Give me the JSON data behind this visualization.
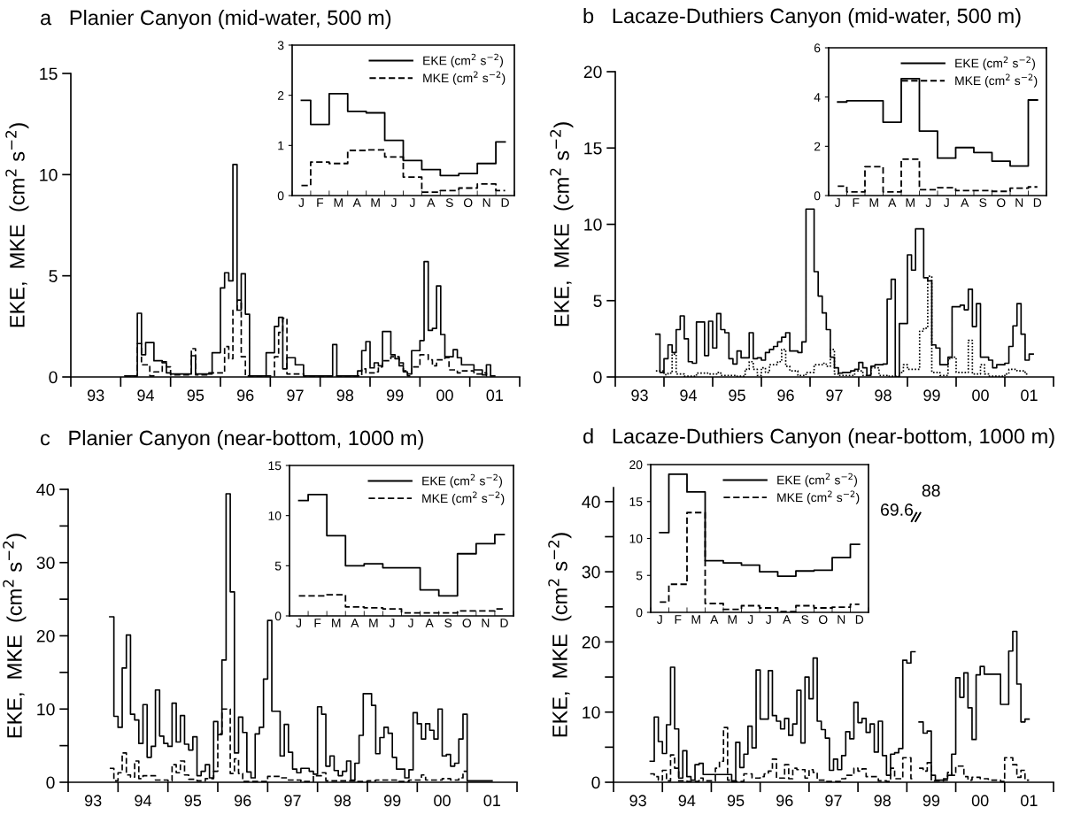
{
  "chart_data": [
    {
      "type": "step",
      "title": "a   Planier Canyon (mid-water, 500 m)",
      "ylabel": "EKE,  MKE  (cm$^{2}$ s$^{−2}$)",
      "xlim": [
        "1993",
        "2002"
      ],
      "xticks": [
        {
          "value": "1993",
          "label": null
        },
        {
          "value": "1993-07",
          "label": "93"
        },
        {
          "value": "1994",
          "label": null
        },
        {
          "value": "1994-07",
          "label": "94"
        },
        {
          "value": "1995",
          "label": null
        },
        {
          "value": "1995-07",
          "label": "95"
        },
        {
          "value": "1996",
          "label": null
        },
        {
          "value": "1996-07",
          "label": "96"
        },
        {
          "value": "1997",
          "label": null
        },
        {
          "value": "1997-07",
          "label": "97"
        },
        {
          "value": "1998",
          "label": null
        },
        {
          "value": "1998-07",
          "label": "98"
        },
        {
          "value": "1999",
          "label": null
        },
        {
          "value": "1999-07",
          "label": "99"
        },
        {
          "value": "2000",
          "label": null
        },
        {
          "value": "2000-07",
          "label": "00"
        },
        {
          "value": "2001",
          "label": null
        },
        {
          "value": "2001-07",
          "label": "01"
        },
        {
          "value": "2002",
          "label": null
        }
      ],
      "ylim": [
        0,
        15
      ],
      "yticks": [
        0,
        5,
        10,
        15
      ],
      "series": [
        {
          "color": "#000000",
          "line_style": "solid",
          "x": [
            "1994-02",
            "1994-05",
            "1994-06",
            "1994-07",
            "1994-09",
            "1994-11",
            "1994-12",
            "1995-01",
            "1995-06",
            "1995-07",
            "1995-11",
            "1996-01",
            "1996-02",
            "1996-03",
            "1996-04",
            "1996-05",
            "1996-06",
            "1996-07",
            "1996-08",
            "1996-12",
            "1997-02",
            "1997-03",
            "1997-04",
            "1997-05",
            "1997-07",
            "1997-09",
            "1998-04",
            "1998-05",
            "1998-10",
            "1998-11",
            "1998-12",
            "1999-01",
            "1999-02",
            "1999-03",
            "1999-04",
            "1999-06",
            "1999-07",
            "1999-08",
            "1999-09",
            "1999-10",
            "1999-11",
            "2000-01",
            "2000-02",
            "2000-03",
            "2000-04",
            "2000-05",
            "2000-06",
            "2000-07",
            "2000-09",
            "2000-10",
            "2000-11",
            "2001-02",
            "2001-04",
            "2001-05",
            "2001-06"
          ],
          "values": [
            0.05,
            3.15,
            1.1,
            1.7,
            0.8,
            0.7,
            0.2,
            0.15,
            1.05,
            0.15,
            1.2,
            4.4,
            5.15,
            4.75,
            10.5,
            3.3,
            5.1,
            3.1,
            0.05,
            1.2,
            2.5,
            2.95,
            0.4,
            0.95,
            0.6,
            0.05,
            1.6,
            0.05,
            0.3,
            1.3,
            1.75,
            0.45,
            0.7,
            0.55,
            2.25,
            1.1,
            0.9,
            0.55,
            0.25,
            0.15,
            1.3,
            1.8,
            5.7,
            2.3,
            2.4,
            4.5,
            2.1,
            1.0,
            1.35,
            0.95,
            0.6,
            0.35,
            0.1,
            0.6,
            0.05
          ]
        },
        {
          "color": "#000000",
          "line_style": "dashed",
          "x": [
            "1994-02",
            "1994-05",
            "1994-06",
            "1994-08",
            "1994-09",
            "1994-11",
            "1994-12",
            "1995-01",
            "1995-06",
            "1995-07",
            "1995-10",
            "1996-02",
            "1996-03",
            "1996-04",
            "1996-05",
            "1996-06",
            "1996-07",
            "1997-02",
            "1997-03",
            "1997-04",
            "1997-05",
            "1997-09",
            "1998-11",
            "1998-12",
            "1999-02",
            "1999-03",
            "1999-04",
            "1999-06",
            "1999-08",
            "1999-09",
            "1999-10",
            "1999-11",
            "2000-01",
            "2000-03",
            "2000-04",
            "2000-05",
            "2000-07",
            "2000-08",
            "2000-10",
            "2000-11",
            "2001-02",
            "2001-04",
            "2001-05"
          ],
          "values": [
            0.05,
            1.65,
            0.6,
            0.05,
            0.25,
            0.75,
            0.5,
            0.1,
            1.4,
            0.1,
            0.2,
            1.5,
            0.9,
            3.3,
            3.8,
            1.0,
            0.05,
            1.0,
            2.2,
            2.9,
            0.15,
            0.05,
            0.4,
            0.2,
            0.25,
            0.5,
            0.8,
            1.0,
            0.7,
            0.3,
            0.05,
            0.5,
            1.1,
            0.85,
            0.55,
            0.85,
            0.95,
            0.35,
            0.2,
            0.3,
            0.15,
            0.2,
            0.05
          ]
        }
      ]
    },
    {
      "type": "step",
      "categories": [
        "J",
        "F",
        "M",
        "A",
        "M",
        "J",
        "J",
        "A",
        "S",
        "O",
        "N",
        "D"
      ],
      "ylim": [
        0,
        3
      ],
      "yticks": [
        0,
        1,
        2,
        3
      ],
      "legend": "top right",
      "series": [
        {
          "name": "EKE (cm$^{2}$ s$^{−2}$)",
          "color": "#000000",
          "line_style": "solid",
          "values": [
            1.9,
            1.42,
            2.03,
            1.68,
            1.65,
            1.1,
            0.7,
            0.52,
            0.4,
            0.44,
            0.64,
            1.07
          ]
        },
        {
          "name": "MKE (cm$^{2}$ s$^{−2}$)",
          "color": "#000000",
          "line_style": "dashed",
          "values": [
            0.2,
            0.67,
            0.64,
            0.9,
            0.91,
            0.77,
            0.37,
            0.07,
            0.1,
            0.15,
            0.23,
            0.1
          ]
        }
      ]
    },
    {
      "type": "step",
      "title": "b   Lacaze-Duthiers Canyon (mid-water, 500 m)",
      "ylabel": "EKE,  MKE  (cm$^{2}$ s$^{−2}$)",
      "xlim": [
        "1993",
        "2002"
      ],
      "xticks": [
        {
          "value": "1993",
          "label": null
        },
        {
          "value": "1993-07",
          "label": "93"
        },
        {
          "value": "1994",
          "label": null
        },
        {
          "value": "1994-07",
          "label": "94"
        },
        {
          "value": "1995",
          "label": null
        },
        {
          "value": "1995-07",
          "label": "95"
        },
        {
          "value": "1996",
          "label": null
        },
        {
          "value": "1996-07",
          "label": "96"
        },
        {
          "value": "1997",
          "label": null
        },
        {
          "value": "1997-07",
          "label": "97"
        },
        {
          "value": "1998",
          "label": null
        },
        {
          "value": "1998-07",
          "label": "98"
        },
        {
          "value": "1999",
          "label": null
        },
        {
          "value": "1999-07",
          "label": "99"
        },
        {
          "value": "2000",
          "label": null
        },
        {
          "value": "2000-07",
          "label": "00"
        },
        {
          "value": "2001",
          "label": null
        },
        {
          "value": "2001-07",
          "label": "01"
        },
        {
          "value": "2002",
          "label": null
        }
      ],
      "ylim": [
        0,
        20
      ],
      "yticks": [
        0,
        5,
        10,
        15,
        20
      ],
      "series": [
        {
          "color": "#000000",
          "line_style": "solid",
          "x": [
            "1993-11",
            "1993-12",
            "1994-01",
            "1994-02",
            "1994-03",
            "1994-04",
            "1994-05",
            "1994-06",
            "1994-07",
            "1994-08",
            "1994-09",
            "1994-11",
            "1994-12",
            "1995-01",
            "1995-02",
            "1995-03",
            "1995-04",
            "1995-05",
            "1995-06",
            "1995-07",
            "1995-08",
            "1995-10",
            "1995-11",
            "1995-12",
            "1996-01",
            "1996-02",
            "1996-03",
            "1996-04",
            "1996-05",
            "1996-06",
            "1996-07",
            "1996-08",
            "1996-10",
            "1996-11",
            "1996-12",
            "1997-02",
            "1997-03",
            "1997-04",
            "1997-05",
            "1997-06",
            "1997-07",
            "1997-08",
            "1997-09",
            "1997-11",
            "1997-12",
            "1998-01",
            "1998-02",
            "1998-03",
            "1998-04",
            "1998-05",
            "1998-07",
            "1998-08",
            "1998-09",
            "1998-10",
            "1998-11",
            "1999-01",
            "1999-02",
            "1999-03",
            "1999-05",
            "1999-06",
            "1999-07",
            "1999-08",
            "1999-09",
            "1999-11",
            "1999-12",
            "2000-02",
            "2000-03",
            "2000-04",
            "2000-05",
            "2000-06",
            "2000-07",
            "2000-09",
            "2000-10",
            "2000-11",
            "2001-01",
            "2001-02",
            "2001-03",
            "2001-04",
            "2001-05",
            "2001-06",
            "2001-07"
          ],
          "values": [
            2.8,
            0.3,
            1.2,
            2.1,
            1.6,
            3.1,
            4.0,
            2.5,
            1.0,
            0.9,
            3.6,
            1.4,
            3.65,
            1.9,
            4.15,
            3.1,
            2.9,
            1.2,
            0.85,
            1.7,
            1.25,
            2.9,
            1.2,
            1.25,
            1.1,
            1.6,
            1.8,
            2.0,
            2.3,
            2.6,
            2.9,
            1.7,
            1.6,
            2.3,
            11.0,
            6.9,
            5.3,
            4.2,
            3.1,
            1.3,
            0.6,
            0.25,
            0.3,
            0.4,
            0.5,
            0.95,
            0.6,
            0.1,
            0.7,
            0.8,
            0.85,
            5.1,
            6.4,
            0.0,
            3.5,
            8.0,
            7.0,
            9.7,
            6.5,
            6.3,
            2.1,
            1.9,
            0.8,
            1.3,
            4.6,
            4.7,
            4.4,
            5.75,
            3.3,
            4.8,
            1.3,
            1.1,
            0.6,
            0.8,
            0.9,
            2.0,
            3.35,
            4.8,
            2.8,
            1.1,
            1.5
          ]
        },
        {
          "color": "#000000",
          "line_style": "dotted",
          "x": [
            "1993-11",
            "1994-01",
            "1994-02",
            "1994-03",
            "1994-04",
            "1994-06",
            "1994-09",
            "1994-12",
            "1995-02",
            "1995-03",
            "1995-07",
            "1995-09",
            "1995-10",
            "1995-11",
            "1995-12",
            "1996-01",
            "1996-02",
            "1996-03",
            "1996-05",
            "1996-06",
            "1996-07",
            "1996-08",
            "1996-10",
            "1996-12",
            "1997-02",
            "1997-04",
            "1997-05",
            "1997-06",
            "1997-07",
            "1997-08",
            "1997-12",
            "1998-02",
            "1998-04",
            "1998-06",
            "1998-08",
            "1998-11",
            "1998-12",
            "1999-01",
            "1999-04",
            "1999-05",
            "1999-06",
            "1999-07",
            "1999-09",
            "1999-11",
            "1999-12",
            "2000-01",
            "2000-04",
            "2000-05",
            "2000-07",
            "2000-08",
            "2000-09",
            "2001-01",
            "2001-02",
            "2001-04",
            "2001-06"
          ],
          "values": [
            0.4,
            0.15,
            0.25,
            1.5,
            0.2,
            0.05,
            0.25,
            0.2,
            0.3,
            0.1,
            0.05,
            0.5,
            1.0,
            0.5,
            0.1,
            0.6,
            0.3,
            0.8,
            1.0,
            1.8,
            0.7,
            0.4,
            0.1,
            0.3,
            0.8,
            0.9,
            0.7,
            1.8,
            0.2,
            0.1,
            0.4,
            0.1,
            0.6,
            0.1,
            0.05,
            0.3,
            0.8,
            0.5,
            3.0,
            3.2,
            6.6,
            0.3,
            0.1,
            1.2,
            1.3,
            0.3,
            2.4,
            0.2,
            0.8,
            0.2,
            0.05,
            0.2,
            0.5,
            0.4,
            0.2
          ]
        }
      ]
    },
    {
      "type": "step",
      "categories": [
        "J",
        "F",
        "M",
        "A",
        "M",
        "J",
        "J",
        "A",
        "S",
        "O",
        "N",
        "D"
      ],
      "ylim": [
        0,
        6
      ],
      "yticks": [
        0,
        2,
        4,
        6
      ],
      "legend": "top right",
      "series": [
        {
          "name": "EKE (cm$^{2}$ s$^{−2}$)",
          "color": "#000000",
          "line_style": "solid",
          "values": [
            3.8,
            3.85,
            3.85,
            2.98,
            4.75,
            2.62,
            1.52,
            1.95,
            1.75,
            1.4,
            1.2,
            3.88
          ]
        },
        {
          "name": "MKE (cm$^{2}$ s$^{−2}$)",
          "color": "#000000",
          "line_style": "dashed",
          "values": [
            0.38,
            0.15,
            1.17,
            0.15,
            1.48,
            0.24,
            0.32,
            0.2,
            0.2,
            0.17,
            0.3,
            0.35
          ]
        }
      ]
    },
    {
      "type": "step",
      "title": "c   Planier Canyon (near-bottom, 1000 m)",
      "ylabel": "EKE,  MKE  (cm$^{2}$ s$^{−2}$)",
      "xlim": [
        "1993",
        "2002"
      ],
      "xticks": [
        {
          "value": "1993",
          "label": null
        },
        {
          "value": "1993-07",
          "label": "93"
        },
        {
          "value": "1994",
          "label": null
        },
        {
          "value": "1994-07",
          "label": "94"
        },
        {
          "value": "1995",
          "label": null
        },
        {
          "value": "1995-07",
          "label": "95"
        },
        {
          "value": "1996",
          "label": null
        },
        {
          "value": "1996-07",
          "label": "96"
        },
        {
          "value": "1997",
          "label": null
        },
        {
          "value": "1997-07",
          "label": "97"
        },
        {
          "value": "1998",
          "label": null
        },
        {
          "value": "1998-07",
          "label": "98"
        },
        {
          "value": "1999",
          "label": null
        },
        {
          "value": "1999-07",
          "label": "99"
        },
        {
          "value": "2000",
          "label": null
        },
        {
          "value": "2000-07",
          "label": "00"
        },
        {
          "value": "2001",
          "label": null
        },
        {
          "value": "2001-07",
          "label": "01"
        },
        {
          "value": "2002",
          "label": null
        }
      ],
      "ylim": [
        0,
        40
      ],
      "yticks": [
        0,
        {
          "value": 5,
          "label": null
        },
        10,
        {
          "value": 15,
          "label": null
        },
        20,
        {
          "value": 25,
          "label": null
        },
        30,
        {
          "value": 35,
          "label": null
        },
        40
      ],
      "series": [
        {
          "color": "#000000",
          "line_style": "solid",
          "x": [
            "1993-11",
            "1993-12",
            "1994-01",
            "1994-02",
            "1994-03",
            "1994-04",
            "1994-05",
            "1994-06",
            "1994-07",
            "1994-08",
            "1994-09",
            "1994-10",
            "1994-11",
            "1994-12",
            "1995-01",
            "1995-02",
            "1995-03",
            "1995-04",
            "1995-05",
            "1995-06",
            "1995-07",
            "1995-08",
            "1995-09",
            "1995-10",
            "1995-11",
            "1995-12",
            "1996-01",
            "1996-02",
            "1996-03",
            "1996-04",
            "1996-05",
            "1996-06",
            "1996-07",
            "1996-08",
            "1996-09",
            "1996-10",
            "1996-11",
            "1996-12",
            "1997-01",
            "1997-02",
            "1997-04",
            "1997-05",
            "1997-06",
            "1997-07",
            "1997-08",
            "1997-09",
            "1997-11",
            "1997-12",
            "1998-01",
            "1998-02",
            "1998-03",
            "1998-04",
            "1998-05",
            "1998-06",
            "1998-07",
            "1998-08",
            "1998-09",
            "1998-10",
            "1998-11",
            "1998-12",
            "1999-02",
            "1999-03",
            "1999-04",
            "1999-05",
            "1999-06",
            "1999-07",
            "1999-08",
            "1999-10",
            "1999-11",
            "1999-12",
            "2000-01",
            "2000-02",
            "2000-03",
            "2000-04",
            "2000-05",
            "2000-06",
            "2000-07",
            "2000-08",
            "2000-09",
            "2000-10",
            "2000-11",
            "2000-12",
            "2001-01",
            "2001-06"
          ],
          "values": [
            22.6,
            9.0,
            7.5,
            15.6,
            20.1,
            9.3,
            8.5,
            5.3,
            10.6,
            3.4,
            4.9,
            12.6,
            6.3,
            5.3,
            4.9,
            10.8,
            5.5,
            9.1,
            5.2,
            4.4,
            6.2,
            0.9,
            1.5,
            2.4,
            0.6,
            8.3,
            6.5,
            16.7,
            39.4,
            26.0,
            4.0,
            8.9,
            6.8,
            1.4,
            0.6,
            6.6,
            7.5,
            14.1,
            22.1,
            9.7,
            3.6,
            7.9,
            4.1,
            1.8,
            1.3,
            1.9,
            1.5,
            1.1,
            10.3,
            9.3,
            2.2,
            3.6,
            1.6,
            0.9,
            1.5,
            2.9,
            0.3,
            2.6,
            6.4,
            12.1,
            10.5,
            3.9,
            6.1,
            7.5,
            6.7,
            3.4,
            1.8,
            0.6,
            1.7,
            9.5,
            8.0,
            5.9,
            8.0,
            7.1,
            5.9,
            10.0,
            3.6,
            3.8,
            2.2,
            2.6,
            5.9,
            9.3,
            0.2,
            0.2
          ]
        },
        {
          "color": "#000000",
          "line_style": "dashed",
          "x": [
            "1993-11",
            "1993-12",
            "1994-01",
            "1994-02",
            "1994-03",
            "1994-04",
            "1994-05",
            "1994-06",
            "1994-07",
            "1994-10",
            "1995-01",
            "1995-02",
            "1995-03",
            "1995-04",
            "1995-05",
            "1995-06",
            "1995-08",
            "1995-10",
            "1995-12",
            "1996-01",
            "1996-02",
            "1996-04",
            "1996-05",
            "1996-06",
            "1996-07",
            "1997-01",
            "1997-04",
            "1997-06",
            "1997-09",
            "1997-12",
            "1998-02",
            "1998-03",
            "1998-10",
            "1999-01",
            "1999-03",
            "1999-08",
            "1999-11",
            "2000-02",
            "2000-03",
            "2000-07",
            "2000-09",
            "2000-11",
            "2000-12"
          ],
          "values": [
            1.9,
            0.2,
            1.3,
            4.0,
            1.0,
            0.7,
            2.9,
            0.5,
            0.9,
            0.3,
            0.2,
            2.4,
            1.3,
            2.9,
            1.0,
            0.4,
            0.2,
            0.5,
            1.5,
            6.6,
            10.0,
            1.2,
            3.2,
            1.2,
            0.1,
            0.8,
            0.6,
            0.3,
            0.1,
            0.9,
            1.3,
            0.2,
            0.1,
            0.2,
            0.3,
            0.1,
            0.3,
            1.0,
            0.3,
            0.5,
            0.3,
            0.6,
            1.5
          ]
        }
      ]
    },
    {
      "type": "step",
      "categories": [
        "J",
        "F",
        "M",
        "A",
        "M",
        "J",
        "J",
        "A",
        "S",
        "O",
        "N",
        "D"
      ],
      "ylim": [
        0,
        15
      ],
      "yticks": [
        0,
        5,
        10,
        15
      ],
      "legend": "top right",
      "series": [
        {
          "name": "EKE (cm$^{2}$ s$^{−2}$)",
          "color": "#000000",
          "line_style": "solid",
          "values": [
            11.5,
            12.1,
            8.0,
            5.0,
            5.2,
            4.8,
            4.8,
            2.6,
            2.0,
            6.2,
            7.2,
            8.1
          ]
        },
        {
          "name": "MKE (cm$^{2}$ s$^{−2}$)",
          "color": "#000000",
          "line_style": "dashed",
          "values": [
            2.0,
            2.0,
            2.1,
            0.9,
            0.8,
            0.7,
            0.3,
            0.3,
            0.3,
            0.5,
            0.5,
            0.7
          ]
        }
      ]
    },
    {
      "type": "step",
      "title": "d   Lacaze-Duthiers Canyon (near-bottom, 1000 m)",
      "ylabel": "EKE,  MKE  (cm$^{2}$ s$^{−2}$)",
      "xlim": [
        "1993",
        "2002"
      ],
      "xticks": [
        {
          "value": "1993",
          "label": null
        },
        {
          "value": "1993-07",
          "label": "93"
        },
        {
          "value": "1994",
          "label": null
        },
        {
          "value": "1994-07",
          "label": "94"
        },
        {
          "value": "1995",
          "label": null
        },
        {
          "value": "1995-07",
          "label": "95"
        },
        {
          "value": "1996",
          "label": null
        },
        {
          "value": "1996-07",
          "label": "96"
        },
        {
          "value": "1997",
          "label": null
        },
        {
          "value": "1997-07",
          "label": "97"
        },
        {
          "value": "1998",
          "label": null
        },
        {
          "value": "1998-07",
          "label": "98"
        },
        {
          "value": "1999",
          "label": null
        },
        {
          "value": "1999-07",
          "label": "99"
        },
        {
          "value": "2000",
          "label": null
        },
        {
          "value": "2000-07",
          "label": "00"
        },
        {
          "value": "2001",
          "label": null
        },
        {
          "value": "2001-07",
          "label": "01"
        },
        {
          "value": "2002",
          "label": null
        }
      ],
      "ylim": [
        0,
        42
      ],
      "yticks": [
        0,
        {
          "value": 5,
          "label": null
        },
        10,
        {
          "value": 15,
          "label": null
        },
        20,
        {
          "value": 25,
          "label": null
        },
        30,
        {
          "value": 35,
          "label": null
        },
        40
      ],
      "annotations": [
        "69.6",
        "88"
      ],
      "series": [
        {
          "color": "#000000",
          "line_style": "solid",
          "x": [
            "1993-10",
            "1993-11",
            "1993-12",
            "1994-01",
            "1994-02",
            "1994-03",
            "1994-04",
            "1994-05",
            "1994-06",
            "1994-07",
            "1994-08",
            "1994-09",
            "1994-10",
            "1994-11",
            "1995-06",
            "1995-07",
            "1995-08",
            "1995-09",
            "1995-10",
            "1995-11",
            "1995-12",
            "1996-01",
            "1996-03",
            "1996-04",
            "1996-05",
            "1996-06",
            "1996-07",
            "1996-08",
            "1996-09",
            "1996-10",
            "1996-11",
            "1996-12",
            "1997-01",
            "1997-02",
            "1997-03",
            "1997-04",
            "1997-05",
            "1997-06",
            "1997-07",
            "1997-08",
            "1997-09",
            "1997-10",
            "1997-11",
            "1997-12",
            "1998-01",
            "1998-02",
            "1998-03",
            "1998-04",
            "1998-05",
            "1998-06",
            "1998-07",
            "1998-08",
            "1998-09",
            "1998-10",
            "1998-11",
            "1998-12",
            "1999-01",
            "1999-02",
            "1999-03",
            "1999-04",
            "1999-05",
            "1999-06",
            "1999-07",
            "1999-08",
            "1999-10",
            "1999-11",
            "1999-12",
            "2000-01",
            "2000-02",
            "2000-03",
            "2000-04",
            "2000-05",
            "2000-06",
            "2000-07",
            "2000-08",
            "2000-12",
            "2001-02",
            "2001-03",
            "2001-04",
            "2001-05",
            "2001-06"
          ],
          "values": [
            3.0,
            9.3,
            5.8,
            4.1,
            8.2,
            16.4,
            7.6,
            0.6,
            4.5,
            0.8,
            0.3,
            2.5,
            2.7,
            1.1,
            0.2,
            5.7,
            2.1,
            4.0,
            8.0,
            4.9,
            16.0,
            9.0,
            15.9,
            9.5,
            8.7,
            7.6,
            9.1,
            6.7,
            8.3,
            13.1,
            5.6,
            15.0,
            11.9,
            17.7,
            8.7,
            7.5,
            6.3,
            1.7,
            3.3,
            1.8,
            3.8,
            7.2,
            6.2,
            11.4,
            8.5,
            9.1,
            7.1,
            8.3,
            4.3,
            8.7,
            3.8,
            1.0,
            4.0,
            4.2,
            4.8,
            17.4,
            17.0,
            18.6,
            null,
            8.6,
            7.0,
            7.3,
            1.0,
            0.3,
            0.5,
            1.0,
            4.0,
            14.9,
            12.1,
            15.6,
            10.6,
            6.1,
            15.3,
            16.5,
            15.4,
            11.1,
            18.7,
            21.5,
            14.0,
            8.6,
            9.0
          ]
        },
        {
          "color": "#000000",
          "line_style": "dashed",
          "x": [
            "1993-10",
            "1993-11",
            "1993-12",
            "1994-01",
            "1994-02",
            "1994-03",
            "1994-04",
            "1994-05",
            "1994-07",
            "1994-10",
            "1994-11",
            "1995-02",
            "1995-03",
            "1995-04",
            "1995-05",
            "1995-06",
            "1995-09",
            "1995-11",
            "1996-01",
            "1996-02",
            "1996-03",
            "1996-04",
            "1996-05",
            "1996-07",
            "1996-08",
            "1996-09",
            "1996-10",
            "1996-12",
            "1997-01",
            "1997-02",
            "1997-03",
            "1997-05",
            "1997-09",
            "1997-10",
            "1997-12",
            "1998-01",
            "1998-02",
            "1998-03",
            "1998-06",
            "1998-08",
            "1998-09",
            "1998-10",
            "1998-12",
            "1999-02",
            "1999-03",
            "1999-04",
            "1999-05",
            "1999-06",
            "1999-07",
            "1999-10",
            "1999-11",
            "1999-12",
            "2000-01",
            "2000-03",
            "2000-04",
            "2000-05",
            "2000-07",
            "2000-09",
            "2000-12",
            "2001-01",
            "2001-03",
            "2001-04",
            "2001-05",
            "2001-06"
          ],
          "values": [
            1.2,
            0.8,
            0.3,
            1.7,
            0.2,
            3.9,
            2.0,
            0.2,
            0.1,
            0.6,
            0.2,
            2.0,
            3.0,
            7.8,
            0.3,
            0.1,
            1.2,
            0.6,
            0.8,
            1.2,
            1.6,
            3.3,
            0.6,
            2.5,
            0.5,
            2.0,
            1.8,
            0.6,
            1.8,
            1.4,
            0.3,
            0.1,
            0.5,
            1.0,
            2.0,
            1.6,
            1.9,
            0.8,
            0.2,
            0.1,
            2.0,
            0.5,
            3.5,
            0.5,
            null,
            2.0,
            1.6,
            2.8,
            0.2,
            0.3,
            1.4,
            1.0,
            2.3,
            0.8,
            0.3,
            0.7,
            0.5,
            0.3,
            0.1,
            3.5,
            2.5,
            0.7,
            1.7,
            0.3
          ]
        }
      ]
    },
    {
      "type": "step",
      "categories": [
        "J",
        "F",
        "M",
        "A",
        "M",
        "J",
        "J",
        "A",
        "S",
        "O",
        "N",
        "D"
      ],
      "ylim": [
        0,
        20
      ],
      "yticks": [
        0,
        5,
        10,
        15,
        20
      ],
      "legend": "top right",
      "series": [
        {
          "name": "EKE (cm$^{2}$ s$^{−2}$)",
          "color": "#000000",
          "line_style": "solid",
          "values": [
            10.8,
            18.7,
            16.3,
            7.0,
            6.7,
            6.4,
            5.5,
            4.9,
            5.6,
            5.7,
            7.4,
            9.2
          ]
        },
        {
          "name": "MKE (cm$^{2}$ s$^{−2}$)",
          "color": "#000000",
          "line_style": "dashed",
          "values": [
            1.4,
            3.8,
            13.5,
            1.2,
            0.4,
            0.9,
            0.6,
            0.1,
            0.9,
            0.6,
            0.7,
            1.1
          ]
        }
      ]
    }
  ]
}
